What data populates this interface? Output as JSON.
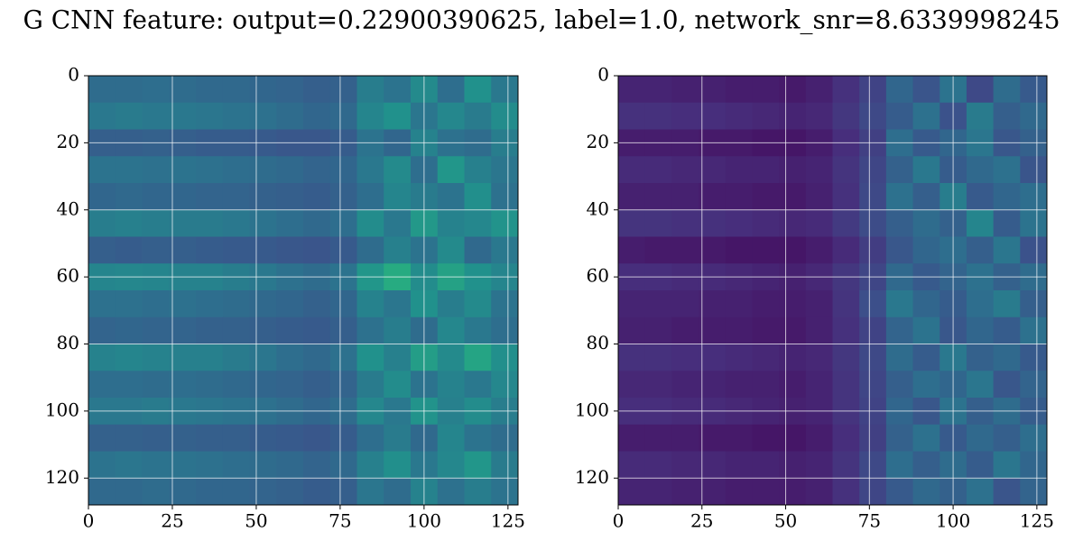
{
  "title": "G CNN feature: output=0.22900390625, label=1.0, network_snr=8.6339998245",
  "chart_data": [
    {
      "type": "heatmap",
      "xlim": [
        0,
        128
      ],
      "ylim": [
        128,
        0
      ],
      "clim": [
        0,
        1
      ],
      "colormap": "viridis",
      "grid": true,
      "xticks": [
        0,
        25,
        50,
        75,
        100,
        125
      ],
      "yticks": [
        0,
        20,
        40,
        60,
        80,
        100,
        120
      ],
      "z": [
        [
          0.35,
          0.35,
          0.36,
          0.35,
          0.34,
          0.34,
          0.33,
          0.32,
          0.3,
          0.31,
          0.42,
          0.38,
          0.47,
          0.36,
          0.5,
          0.4
        ],
        [
          0.4,
          0.41,
          0.4,
          0.4,
          0.39,
          0.38,
          0.37,
          0.35,
          0.33,
          0.34,
          0.45,
          0.5,
          0.39,
          0.46,
          0.41,
          0.48
        ],
        [
          0.3,
          0.3,
          0.31,
          0.3,
          0.29,
          0.29,
          0.28,
          0.27,
          0.27,
          0.29,
          0.38,
          0.33,
          0.44,
          0.37,
          0.35,
          0.42
        ],
        [
          0.38,
          0.38,
          0.37,
          0.38,
          0.37,
          0.36,
          0.35,
          0.34,
          0.32,
          0.33,
          0.4,
          0.47,
          0.36,
          0.52,
          0.43,
          0.39
        ],
        [
          0.33,
          0.34,
          0.33,
          0.33,
          0.32,
          0.32,
          0.31,
          0.3,
          0.29,
          0.31,
          0.36,
          0.45,
          0.41,
          0.38,
          0.49,
          0.37
        ],
        [
          0.42,
          0.43,
          0.42,
          0.41,
          0.41,
          0.4,
          0.38,
          0.36,
          0.34,
          0.36,
          0.48,
          0.4,
          0.53,
          0.44,
          0.46,
          0.51
        ],
        [
          0.3,
          0.29,
          0.3,
          0.3,
          0.29,
          0.28,
          0.28,
          0.27,
          0.26,
          0.28,
          0.35,
          0.43,
          0.38,
          0.47,
          0.34,
          0.4
        ],
        [
          0.45,
          0.46,
          0.45,
          0.44,
          0.44,
          0.42,
          0.4,
          0.37,
          0.35,
          0.38,
          0.52,
          0.61,
          0.48,
          0.57,
          0.5,
          0.45
        ],
        [
          0.37,
          0.37,
          0.36,
          0.37,
          0.36,
          0.35,
          0.34,
          0.33,
          0.31,
          0.33,
          0.44,
          0.39,
          0.5,
          0.42,
          0.47,
          0.38
        ],
        [
          0.32,
          0.33,
          0.32,
          0.32,
          0.31,
          0.31,
          0.3,
          0.29,
          0.28,
          0.3,
          0.37,
          0.42,
          0.35,
          0.46,
          0.4,
          0.36
        ],
        [
          0.44,
          0.45,
          0.44,
          0.43,
          0.43,
          0.41,
          0.39,
          0.36,
          0.34,
          0.37,
          0.5,
          0.43,
          0.55,
          0.47,
          0.58,
          0.49
        ],
        [
          0.36,
          0.36,
          0.35,
          0.36,
          0.35,
          0.34,
          0.33,
          0.32,
          0.3,
          0.32,
          0.41,
          0.48,
          0.38,
          0.44,
          0.4,
          0.46
        ],
        [
          0.4,
          0.4,
          0.41,
          0.4,
          0.39,
          0.38,
          0.37,
          0.35,
          0.33,
          0.35,
          0.46,
          0.4,
          0.51,
          0.43,
          0.48,
          0.42
        ],
        [
          0.31,
          0.31,
          0.3,
          0.31,
          0.3,
          0.3,
          0.29,
          0.28,
          0.27,
          0.29,
          0.36,
          0.41,
          0.34,
          0.45,
          0.38,
          0.35
        ],
        [
          0.38,
          0.39,
          0.38,
          0.38,
          0.37,
          0.36,
          0.35,
          0.34,
          0.32,
          0.34,
          0.43,
          0.49,
          0.4,
          0.46,
          0.52,
          0.41
        ],
        [
          0.34,
          0.34,
          0.35,
          0.34,
          0.33,
          0.33,
          0.32,
          0.31,
          0.29,
          0.3,
          0.39,
          0.35,
          0.44,
          0.37,
          0.42,
          0.38
        ]
      ]
    },
    {
      "type": "heatmap",
      "xlim": [
        0,
        128
      ],
      "ylim": [
        128,
        0
      ],
      "clim": [
        0,
        1
      ],
      "colormap": "viridis",
      "grid": true,
      "xticks": [
        0,
        25,
        50,
        75,
        100,
        125
      ],
      "yticks": [
        0,
        20,
        40,
        60,
        80,
        100,
        120
      ],
      "z": [
        [
          0.1,
          0.1,
          0.09,
          0.09,
          0.08,
          0.08,
          0.07,
          0.09,
          0.14,
          0.2,
          0.33,
          0.26,
          0.38,
          0.22,
          0.35,
          0.28
        ],
        [
          0.14,
          0.14,
          0.13,
          0.13,
          0.12,
          0.11,
          0.1,
          0.11,
          0.16,
          0.22,
          0.29,
          0.37,
          0.25,
          0.41,
          0.3,
          0.34
        ],
        [
          0.08,
          0.08,
          0.08,
          0.07,
          0.07,
          0.06,
          0.06,
          0.08,
          0.13,
          0.19,
          0.36,
          0.28,
          0.33,
          0.39,
          0.27,
          0.31
        ],
        [
          0.12,
          0.12,
          0.11,
          0.11,
          0.1,
          0.1,
          0.09,
          0.1,
          0.15,
          0.21,
          0.31,
          0.4,
          0.29,
          0.34,
          0.37,
          0.26
        ],
        [
          0.09,
          0.09,
          0.09,
          0.08,
          0.08,
          0.07,
          0.07,
          0.09,
          0.14,
          0.22,
          0.37,
          0.3,
          0.42,
          0.28,
          0.33,
          0.36
        ],
        [
          0.15,
          0.15,
          0.14,
          0.14,
          0.13,
          0.12,
          0.11,
          0.12,
          0.17,
          0.23,
          0.3,
          0.35,
          0.31,
          0.45,
          0.29,
          0.38
        ],
        [
          0.08,
          0.07,
          0.07,
          0.07,
          0.06,
          0.06,
          0.06,
          0.08,
          0.12,
          0.18,
          0.27,
          0.33,
          0.36,
          0.3,
          0.39,
          0.25
        ],
        [
          0.13,
          0.13,
          0.12,
          0.12,
          0.11,
          0.1,
          0.09,
          0.11,
          0.16,
          0.21,
          0.34,
          0.28,
          0.32,
          0.37,
          0.31,
          0.35
        ],
        [
          0.1,
          0.1,
          0.1,
          0.09,
          0.09,
          0.08,
          0.08,
          0.09,
          0.15,
          0.24,
          0.4,
          0.33,
          0.29,
          0.36,
          0.41,
          0.3
        ],
        [
          0.09,
          0.09,
          0.08,
          0.08,
          0.08,
          0.07,
          0.07,
          0.09,
          0.14,
          0.2,
          0.32,
          0.38,
          0.27,
          0.33,
          0.29,
          0.37
        ],
        [
          0.14,
          0.14,
          0.13,
          0.13,
          0.12,
          0.11,
          0.1,
          0.11,
          0.16,
          0.22,
          0.35,
          0.29,
          0.4,
          0.31,
          0.34,
          0.28
        ],
        [
          0.11,
          0.11,
          0.1,
          0.1,
          0.09,
          0.09,
          0.08,
          0.1,
          0.15,
          0.21,
          0.3,
          0.36,
          0.33,
          0.39,
          0.27,
          0.32
        ],
        [
          0.13,
          0.13,
          0.12,
          0.12,
          0.11,
          0.1,
          0.09,
          0.1,
          0.15,
          0.2,
          0.33,
          0.27,
          0.38,
          0.3,
          0.35,
          0.29
        ],
        [
          0.08,
          0.08,
          0.08,
          0.07,
          0.07,
          0.06,
          0.06,
          0.08,
          0.13,
          0.19,
          0.31,
          0.37,
          0.28,
          0.34,
          0.3,
          0.36
        ],
        [
          0.12,
          0.12,
          0.11,
          0.11,
          0.1,
          0.1,
          0.09,
          0.1,
          0.15,
          0.22,
          0.36,
          0.3,
          0.35,
          0.29,
          0.39,
          0.33
        ],
        [
          0.1,
          0.1,
          0.09,
          0.09,
          0.08,
          0.08,
          0.08,
          0.09,
          0.14,
          0.21,
          0.28,
          0.34,
          0.31,
          0.37,
          0.26,
          0.32
        ]
      ]
    }
  ]
}
